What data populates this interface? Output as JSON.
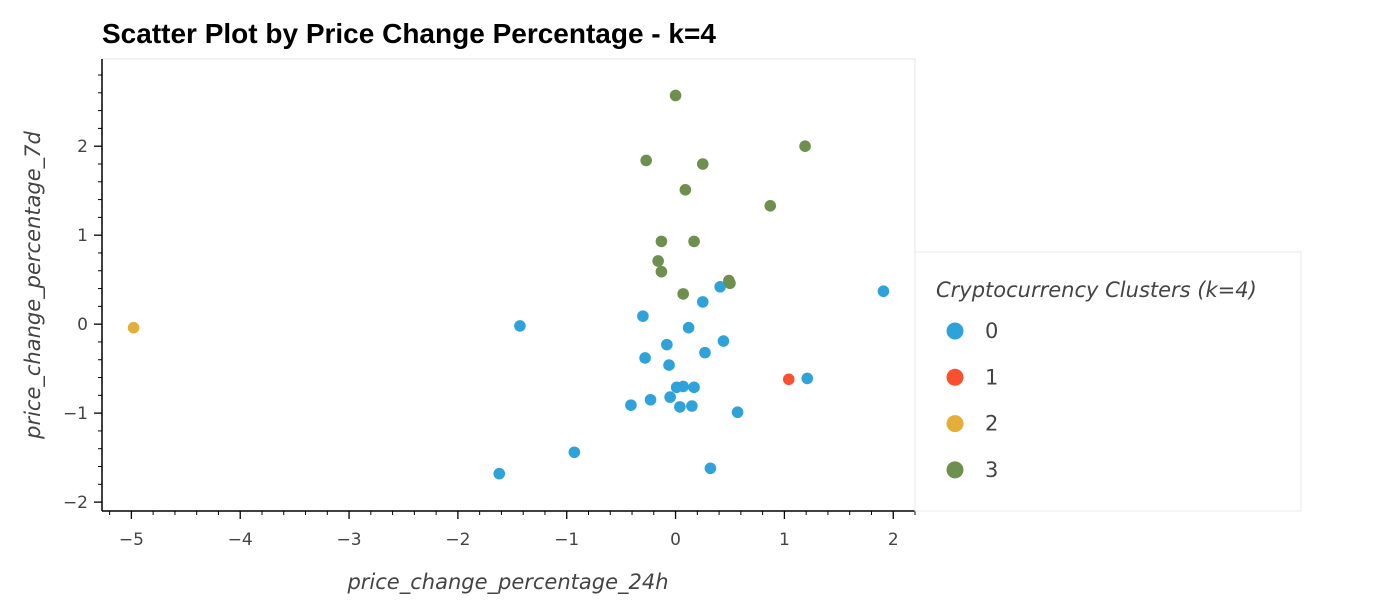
{
  "chart_data": {
    "type": "scatter",
    "title": "Scatter Plot by Price Change Percentage - k=4",
    "xlabel": "price_change_percentage_24h",
    "ylabel": "price_change_percentage_7d",
    "xlim": [
      -5.27,
      2.2
    ],
    "ylim": [
      -2.1,
      2.98
    ],
    "x_ticks": [
      -5,
      -4,
      -3,
      -2,
      -1,
      0,
      1,
      2
    ],
    "x_tick_labels": [
      "−5",
      "−4",
      "−3",
      "−2",
      "−1",
      "0",
      "1",
      "2"
    ],
    "y_ticks": [
      -2,
      -1,
      0,
      1,
      2
    ],
    "y_tick_labels": [
      "−2",
      "−1",
      "0",
      "1",
      "2"
    ],
    "grid": false,
    "legend": {
      "title": "Cryptocurrency Clusters (k=4)",
      "placement": "right"
    },
    "series": [
      {
        "name": "0",
        "color": "#30a2da",
        "points": [
          [
            1.91,
            0.37
          ],
          [
            -1.43,
            -0.02
          ],
          [
            0.41,
            0.42
          ],
          [
            0.25,
            0.25
          ],
          [
            -0.3,
            0.09
          ],
          [
            0.12,
            -0.04
          ],
          [
            0.44,
            -0.19
          ],
          [
            -0.08,
            -0.23
          ],
          [
            0.27,
            -0.32
          ],
          [
            -0.28,
            -0.38
          ],
          [
            -0.06,
            -0.46
          ],
          [
            1.21,
            -0.61
          ],
          [
            0.01,
            -0.71
          ],
          [
            0.07,
            -0.7
          ],
          [
            0.17,
            -0.71
          ],
          [
            -0.05,
            -0.82
          ],
          [
            -0.23,
            -0.85
          ],
          [
            -0.41,
            -0.91
          ],
          [
            0.04,
            -0.93
          ],
          [
            0.15,
            -0.92
          ],
          [
            0.57,
            -0.99
          ],
          [
            -0.93,
            -1.44
          ],
          [
            0.32,
            -1.62
          ],
          [
            -1.62,
            -1.68
          ]
        ]
      },
      {
        "name": "1",
        "color": "#fc4f30",
        "points": [
          [
            1.04,
            -0.62
          ]
        ]
      },
      {
        "name": "2",
        "color": "#e5ae38",
        "points": [
          [
            -4.98,
            -0.04
          ]
        ]
      },
      {
        "name": "3",
        "color": "#6d904f",
        "points": [
          [
            0.0,
            2.57
          ],
          [
            1.19,
            2.0
          ],
          [
            -0.27,
            1.84
          ],
          [
            0.25,
            1.8
          ],
          [
            0.09,
            1.51
          ],
          [
            0.87,
            1.33
          ],
          [
            -0.13,
            0.93
          ],
          [
            0.17,
            0.93
          ],
          [
            -0.16,
            0.71
          ],
          [
            -0.13,
            0.59
          ],
          [
            0.49,
            0.49
          ],
          [
            0.5,
            0.46
          ],
          [
            0.07,
            0.34
          ]
        ]
      }
    ]
  }
}
